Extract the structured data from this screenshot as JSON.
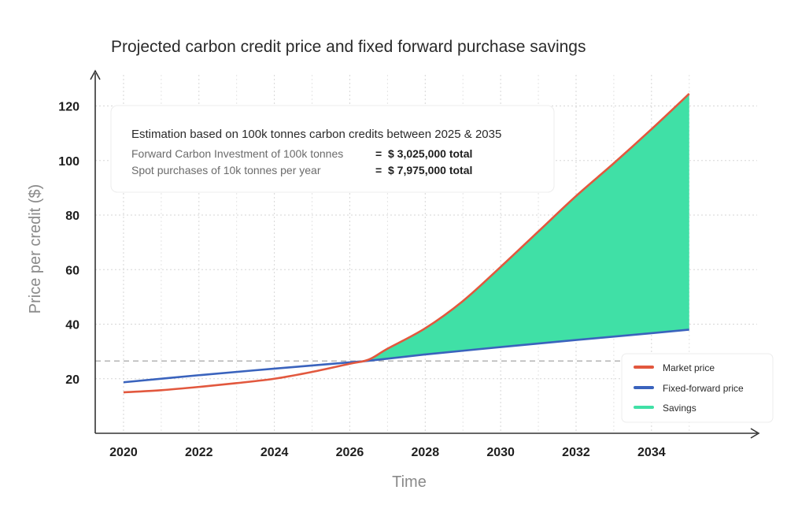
{
  "chart_data": {
    "type": "line",
    "title": "Projected carbon credit price and fixed forward purchase savings",
    "xlabel": "Time",
    "ylabel": "Price per credit ($)",
    "xlim": [
      2019.25,
      2036.8
    ],
    "ylim": [
      0,
      132
    ],
    "x_ticks": [
      2020,
      2022,
      2024,
      2026,
      2028,
      2030,
      2032,
      2034
    ],
    "y_ticks": [
      20,
      40,
      60,
      80,
      100,
      120
    ],
    "grid": true,
    "reference_line": {
      "y": 26.5,
      "style": "dashed"
    },
    "series": [
      {
        "name": "Market price",
        "color": "#e2583e",
        "x": [
          2020,
          2021,
          2022,
          2023,
          2024,
          2025,
          2026,
          2026.5,
          2027,
          2028,
          2029,
          2030,
          2031,
          2032,
          2033,
          2034,
          2035
        ],
        "y": [
          15,
          15.8,
          17,
          18.4,
          20,
          22.5,
          25.5,
          27,
          31,
          38.5,
          48.5,
          61,
          74,
          87,
          99,
          111.5,
          124.5
        ]
      },
      {
        "name": "Fixed-forward price",
        "color": "#3a63bd",
        "x": [
          2020,
          2022,
          2024,
          2026,
          2026.5,
          2028,
          2030,
          2032,
          2034,
          2035
        ],
        "y": [
          18.7,
          21.3,
          23.7,
          26,
          26.6,
          28.9,
          31.6,
          34.2,
          36.7,
          38
        ]
      }
    ],
    "savings_fill": {
      "name": "Savings",
      "color": "#40e0a6",
      "x_start": 2026.5,
      "x_end": 2035
    },
    "legend": {
      "placement": "bottom-right",
      "entries": [
        "Market price",
        "Fixed-forward price",
        "Savings"
      ]
    },
    "annotation": {
      "heading": "Estimation based on 100k tonnes carbon credits between 2025 & 2035",
      "rows": [
        {
          "label": "Forward Carbon Investment of 100k tonnes",
          "eq": "=",
          "value": "$ 3,025,000 total"
        },
        {
          "label": "Spot purchases of 10k tonnes per year",
          "eq": "=",
          "value": "$ 7,975,000 total"
        }
      ]
    }
  }
}
